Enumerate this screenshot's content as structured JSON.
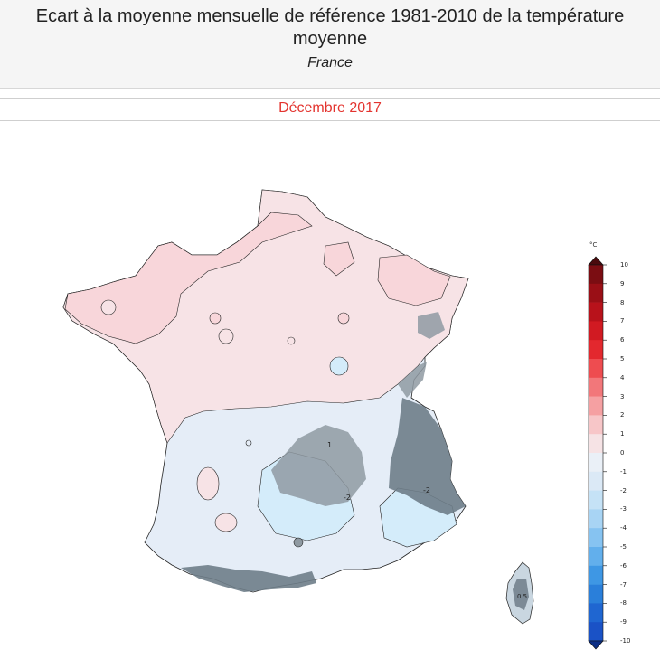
{
  "header": {
    "title": "Ecart à la moyenne mensuelle de référence 1981-2010 de la température moyenne",
    "subtitle": "France"
  },
  "map": {
    "month": "Décembre 2017",
    "regions": [
      {
        "name": "north",
        "color": "#f7e3e6"
      },
      {
        "name": "north-warm",
        "color": "#f8d6da"
      },
      {
        "name": "south",
        "color": "#e5edf7"
      },
      {
        "name": "south-cool",
        "color": "#d4ecfa"
      },
      {
        "name": "relief",
        "color": "#8f9aa2"
      },
      {
        "name": "relief-dark",
        "color": "#6e7d88"
      }
    ],
    "contour_labels": [
      "1",
      "-2",
      "-2",
      "0.5"
    ]
  },
  "colorbar": {
    "unit": "°C",
    "ticks": [
      "10",
      "9",
      "8",
      "7",
      "6",
      "5",
      "4",
      "3",
      "2",
      "1",
      "0",
      "-1",
      "-2",
      "-3",
      "-4",
      "-5",
      "-6",
      "-7",
      "-8",
      "-9",
      "-10"
    ],
    "colors": [
      "#7b0d12",
      "#9a0f16",
      "#b8121b",
      "#d11a22",
      "#e3282e",
      "#ee4c50",
      "#f2777a",
      "#f5a0a2",
      "#f7c6c8",
      "#f6e3e5",
      "#eaf0f7",
      "#dbe9f6",
      "#c5e2f6",
      "#a8d4f4",
      "#86c3f1",
      "#62afec",
      "#3e97e4",
      "#2a7fda",
      "#1f66d1",
      "#1a52c6"
    ],
    "end_colors": {
      "top": "#4a0a0d",
      "bottom": "#0d2f85"
    }
  }
}
